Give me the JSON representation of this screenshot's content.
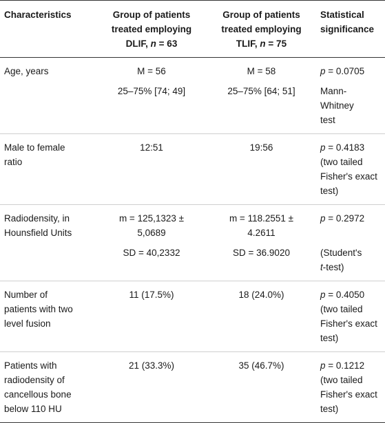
{
  "headers": {
    "characteristics": "Characteristics",
    "dlif_line1": "Group of patients",
    "dlif_line2": "treated employing",
    "dlif_line3_prefix": "DLIF, ",
    "dlif_n_symbol": "n",
    "dlif_n_value": " = 63",
    "tlif_line1": "Group of patients",
    "tlif_line2": "treated employing",
    "tlif_line3_prefix": "TLIF, ",
    "tlif_n_symbol": "n",
    "tlif_n_value": " = 75",
    "stat_line1": "Statistical",
    "stat_line2": "significance"
  },
  "rows": [
    {
      "char_lines": [
        "Age, years"
      ],
      "dlif_a": "M = 56",
      "dlif_b": "25–75% [74; 49]",
      "tlif_a": "M = 58",
      "tlif_b": "25–75% [64; 51]",
      "p_symbol": "p",
      "p_value": " = 0.0705",
      "test_lines": [
        "Mann-",
        "Whitney",
        "test"
      ]
    },
    {
      "char_lines": [
        "Male to female",
        "ratio"
      ],
      "dlif_a": "12:51",
      "tlif_a": "19:56",
      "p_symbol": "p",
      "p_value": " = 0.4183",
      "test_lines": [
        "(two tailed",
        "Fisher's exact",
        "test)"
      ]
    },
    {
      "char_lines": [
        "Radiodensity, in",
        "Hounsfield Units"
      ],
      "dlif_a1": "m = 125,1323 ±",
      "dlif_a2": "5,0689",
      "dlif_b": "SD = 40,2332",
      "tlif_a1": "m = 118.2551 ±",
      "tlif_a2": "4.2611",
      "tlif_b": "SD = 36.9020",
      "p_symbol": "p",
      "p_value": " = 0.2972",
      "test_line1": "(Student's",
      "test_t": "t",
      "test_line2_rest": "-test)"
    },
    {
      "char_lines": [
        "Number of",
        "patients with two",
        "level fusion"
      ],
      "dlif_a": "11 (17.5%)",
      "tlif_a": "18 (24.0%)",
      "p_symbol": "p",
      "p_value": " = 0.4050",
      "test_lines": [
        "(two tailed",
        "Fisher's exact",
        "test)"
      ]
    },
    {
      "char_lines": [
        "Patients with",
        "radiodensity of",
        "cancellous bone",
        "below 110 HU"
      ],
      "dlif_a": "21 (33.3%)",
      "tlif_a": "35 (46.7%)",
      "p_symbol": "p",
      "p_value": " = 0.1212",
      "test_lines": [
        "(two tailed",
        "Fisher's exact",
        "test)"
      ]
    }
  ]
}
